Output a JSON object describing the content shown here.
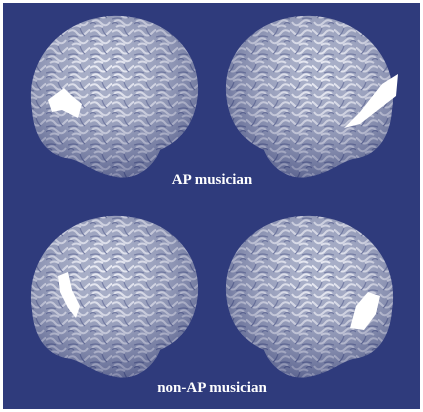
{
  "panels": [
    {
      "label": "AP musician"
    },
    {
      "label": "non-AP musician"
    }
  ]
}
